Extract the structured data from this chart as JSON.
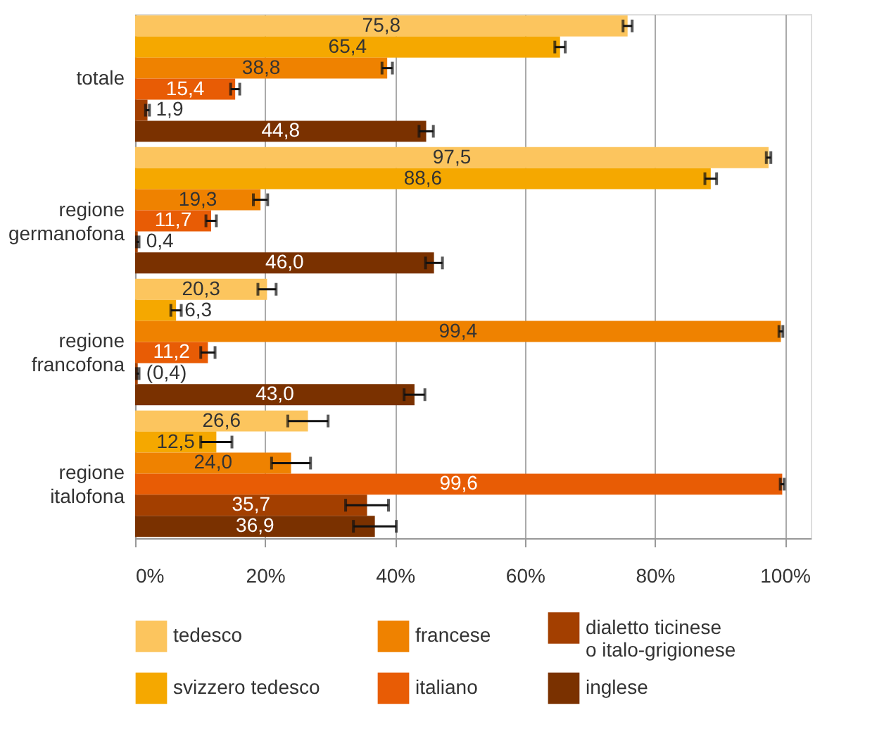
{
  "chart_data": {
    "type": "bar",
    "orientation": "horizontal",
    "categories": [
      "totale",
      "regione germanofona",
      "regione francofona",
      "regione italofona"
    ],
    "series": [
      {
        "name": "tedesco",
        "color": "#fcc55e",
        "values": [
          75.8,
          97.5,
          20.3,
          26.6
        ],
        "errors": [
          0.7,
          0.35,
          1.4,
          3.1
        ],
        "value_labels": [
          "75,8",
          "97,5",
          "20,3",
          "26,6"
        ]
      },
      {
        "name": "svizzero tedesco",
        "color": "#f5a800",
        "values": [
          65.4,
          88.6,
          6.3,
          12.5
        ],
        "errors": [
          0.8,
          0.9,
          0.8,
          2.4
        ],
        "value_labels": [
          "65,4",
          "88,6",
          "6,3",
          "12,5"
        ]
      },
      {
        "name": "francese",
        "color": "#ef8200",
        "values": [
          38.8,
          19.3,
          99.4,
          24.0
        ],
        "errors": [
          0.8,
          1.1,
          0.3,
          3.0
        ],
        "value_labels": [
          "38,8",
          "19,3",
          "99,4",
          "24,0"
        ]
      },
      {
        "name": "italiano",
        "color": "#e85c05",
        "values": [
          15.4,
          11.7,
          11.2,
          99.6
        ],
        "errors": [
          0.7,
          0.8,
          1.1,
          0.3
        ],
        "value_labels": [
          "15,4",
          "11,7",
          "11,2",
          "99,6"
        ]
      },
      {
        "name": "dialetto ticinese o italo-grigionese",
        "color": "#a33f00",
        "values": [
          1.9,
          0.4,
          0.4,
          35.7
        ],
        "errors": [
          0.3,
          0.2,
          0.2,
          3.3
        ],
        "value_labels": [
          "1,9",
          "0,4",
          "(0,4)",
          "35,7"
        ]
      },
      {
        "name": "inglese",
        "color": "#7a3100",
        "values": [
          44.8,
          46.0,
          43.0,
          36.9
        ],
        "errors": [
          1.1,
          1.3,
          1.6,
          3.3
        ],
        "value_labels": [
          "44,8",
          "46,0",
          "43,0",
          "36,9"
        ]
      }
    ],
    "xlim": [
      0,
      104
    ],
    "xticks": [
      {
        "value": 0,
        "label": "0%"
      },
      {
        "value": 20,
        "label": "20%"
      },
      {
        "value": 40,
        "label": "40%"
      },
      {
        "value": 60,
        "label": "60%"
      },
      {
        "value": 80,
        "label": "80%"
      },
      {
        "value": 100,
        "label": "100%"
      }
    ],
    "grid": "x",
    "legend": "bottom"
  }
}
